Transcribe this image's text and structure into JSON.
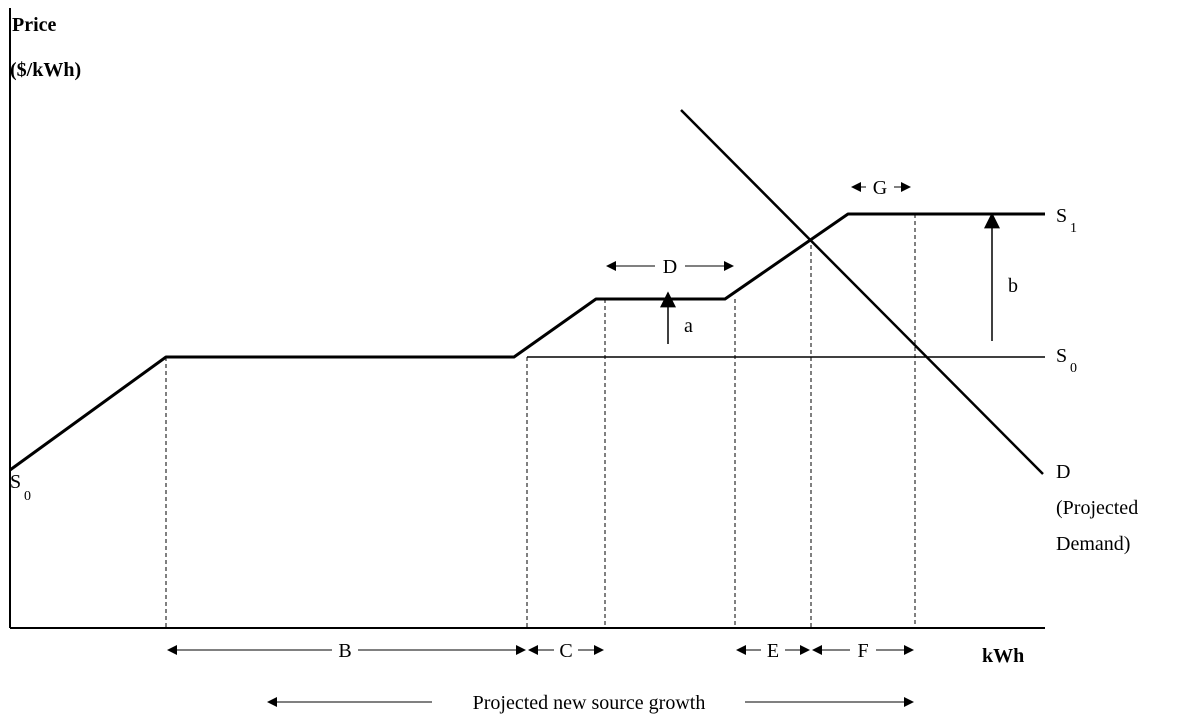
{
  "y_axis": {
    "title_line1": "Price",
    "title_line2": "($/kWh)"
  },
  "x_axis": {
    "title": "kWh"
  },
  "curves": {
    "s0_left": {
      "main": "S",
      "sub": "0"
    },
    "s0_right": {
      "main": "S",
      "sub": "0"
    },
    "s1": {
      "main": "S",
      "sub": "1"
    },
    "demand": {
      "line1": "D",
      "line2": "(Projected",
      "line3": "Demand)"
    }
  },
  "shifts": {
    "a": "a",
    "b": "b"
  },
  "segments": {
    "B": "B",
    "C": "C",
    "D": "D",
    "E": "E",
    "F": "F",
    "G": "G"
  },
  "growth_label": "Projected new source growth",
  "colors": {
    "line": "#000000",
    "background": "#ffffff"
  }
}
